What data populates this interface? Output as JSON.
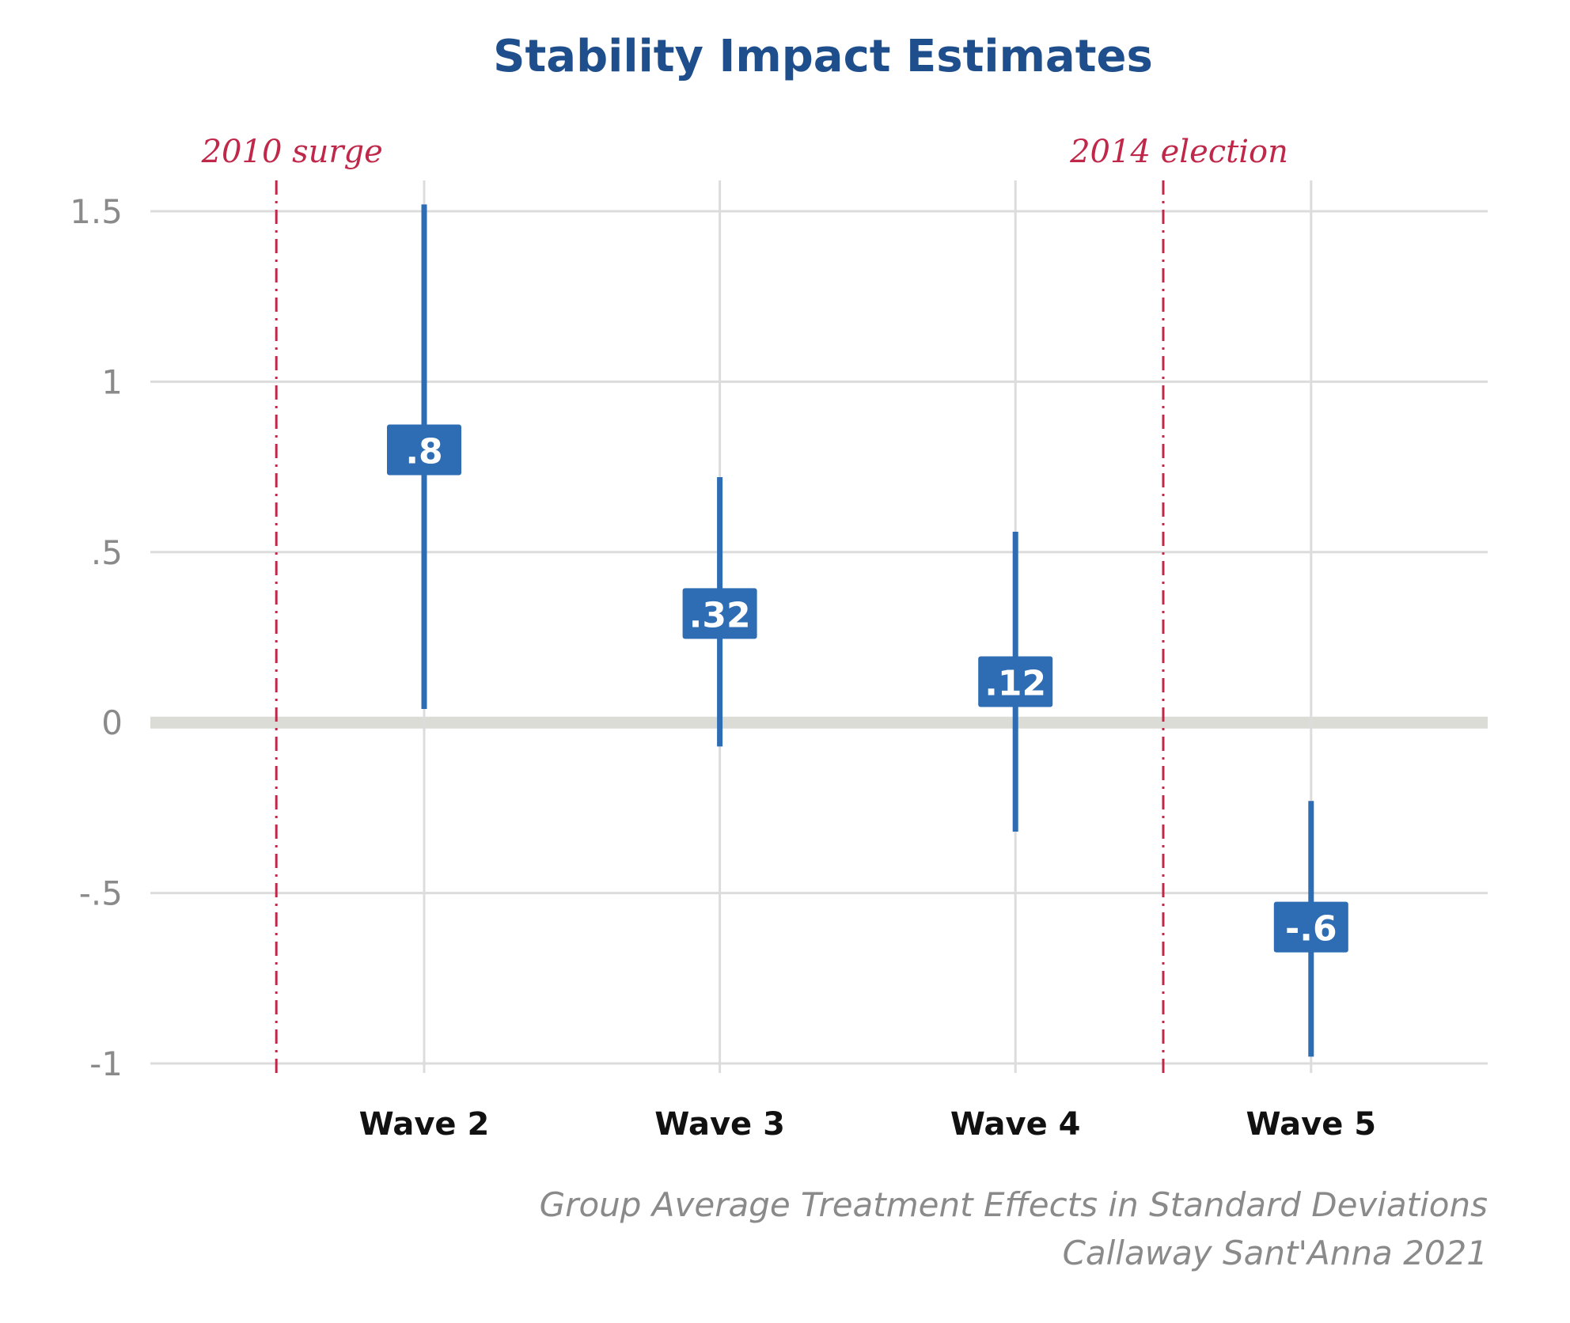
{
  "chart_data": {
    "type": "errorbar",
    "title": "Stability Impact Estimates",
    "categories": [
      "Wave 2",
      "Wave 3",
      "Wave 4",
      "Wave 5"
    ],
    "estimates": [
      0.8,
      0.32,
      0.12,
      -0.6
    ],
    "value_labels": [
      ".8",
      ".32",
      ".12",
      "-.6"
    ],
    "lower": [
      0.04,
      -0.07,
      -0.32,
      -0.98
    ],
    "upper": [
      1.52,
      0.72,
      0.56,
      -0.23
    ],
    "ylim": [
      -1,
      1.5
    ],
    "yticks": [
      1.5,
      1,
      0.5,
      0,
      -0.5,
      -1
    ],
    "ytick_labels": [
      "1.5",
      "1",
      ".5",
      "0",
      "-.5",
      "-1"
    ],
    "annotations": [
      {
        "label": "2010 surge",
        "x": 0.5
      },
      {
        "label": "2014 election",
        "x": 3.5
      }
    ],
    "caption_lines": [
      "Group Average Treatment Effects in Standard Deviations",
      "Callaway Sant'Anna 2021"
    ],
    "grid": true,
    "colors": {
      "title": "#1f4e8c",
      "series": "#2e6db4",
      "annotation": "#c0284a",
      "grid": "#dcdcdc",
      "zero_line": "#dcdcd6",
      "tick_text": "#8a8a8a",
      "category_text": "#111111"
    }
  }
}
